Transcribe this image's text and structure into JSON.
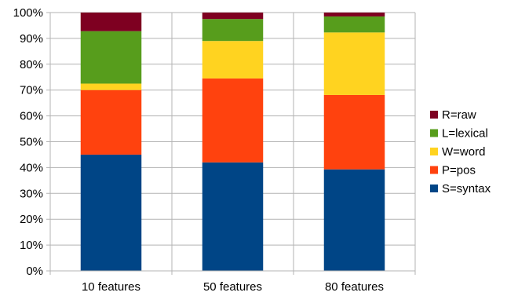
{
  "chart_data": {
    "type": "bar",
    "stacked": true,
    "normalized": true,
    "categories": [
      "10 features",
      "50 features",
      "80 features"
    ],
    "series": [
      {
        "name": "S=syntax",
        "color": "#004586",
        "values": [
          45,
          42,
          39.3
        ]
      },
      {
        "name": "P=pos",
        "color": "#ff420e",
        "values": [
          25,
          32.5,
          28.8
        ]
      },
      {
        "name": "W=word",
        "color": "#ffd320",
        "values": [
          2.5,
          14.5,
          24.2
        ]
      },
      {
        "name": "L=lexical",
        "color": "#579d1c",
        "values": [
          20.3,
          8.5,
          6.2
        ]
      },
      {
        "name": "R=raw",
        "color": "#7e0021",
        "values": [
          7.2,
          2.5,
          1.5
        ]
      }
    ],
    "ylim": [
      0,
      100
    ],
    "yticks": [
      0,
      10,
      20,
      30,
      40,
      50,
      60,
      70,
      80,
      90,
      100
    ],
    "ytick_labels": [
      "0%",
      "10%",
      "20%",
      "30%",
      "40%",
      "50%",
      "60%",
      "70%",
      "80%",
      "90%",
      "100%"
    ],
    "grid": true,
    "legend_position": "right",
    "title": "",
    "xlabel": "",
    "ylabel": ""
  }
}
